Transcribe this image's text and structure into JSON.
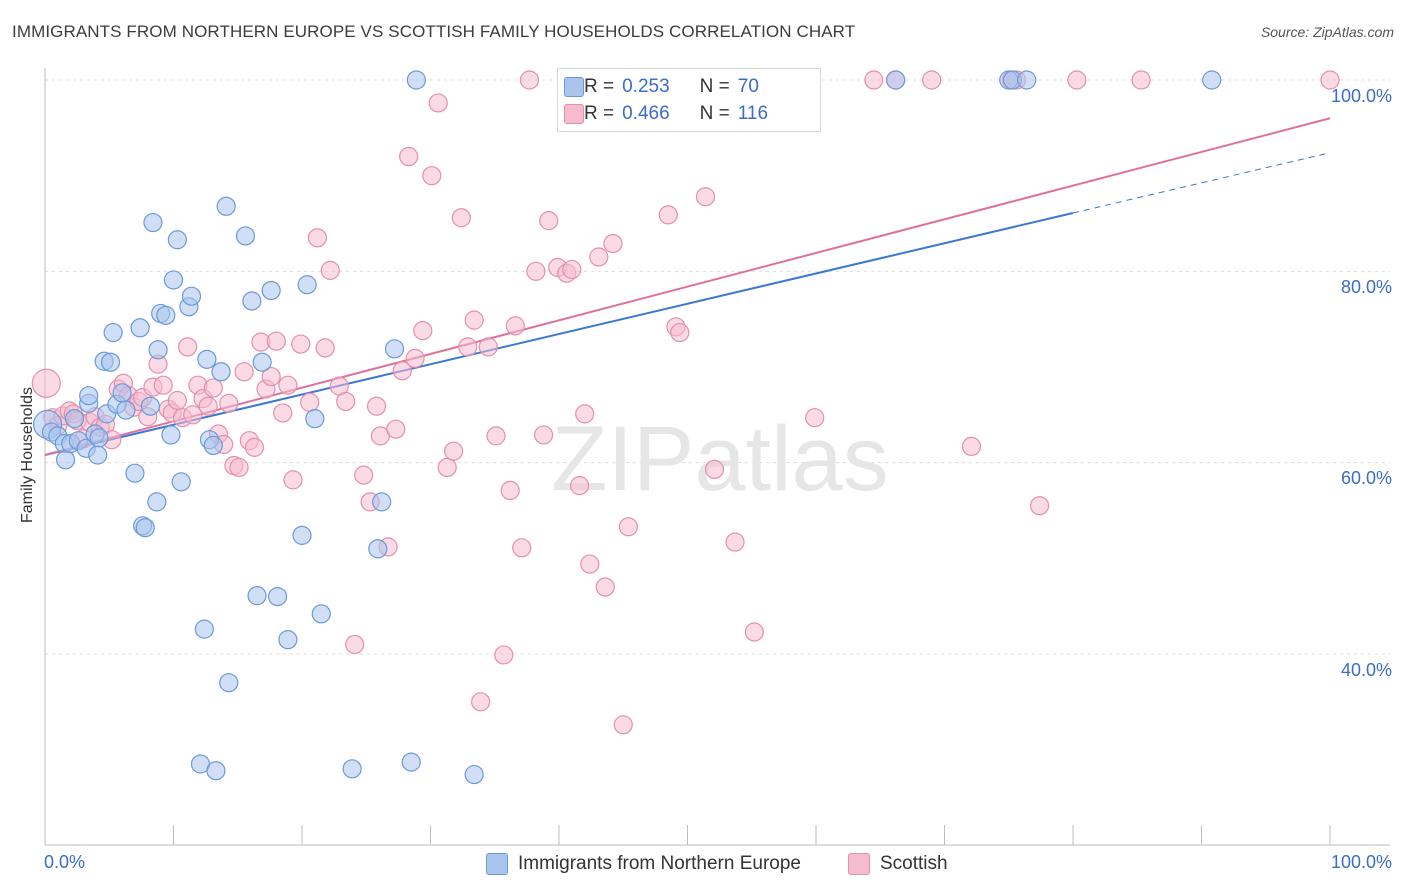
{
  "title": "IMMIGRANTS FROM NORTHERN EUROPE VS SCOTTISH FAMILY HOUSEHOLDS CORRELATION CHART",
  "source": "Source: ZipAtlas.com",
  "watermark": "ZIPatlas",
  "stats_box": {
    "row1": {
      "r_label": "R =",
      "r_value": "0.253",
      "n_label": "N =",
      "n_value": "70"
    },
    "row2": {
      "r_label": "R =",
      "r_value": "0.466",
      "n_label": "N =",
      "n_value": "116"
    }
  },
  "legend": {
    "series1": "Immigrants from Northern Europe",
    "series2": "Scottish"
  },
  "axis_labels": {
    "y": "Family Households",
    "x_min": "0.0%",
    "x_max": "100.0%",
    "y_ticks": [
      "100.0%",
      "80.0%",
      "60.0%",
      "40.0%"
    ]
  },
  "colors": {
    "blue_fill": "#a9c5ee",
    "blue_stroke": "#6b9ad8",
    "blue_line": "#3a78d4",
    "pink_fill": "#f5bcd0",
    "pink_stroke": "#e58fae",
    "pink_line": "#e0709a",
    "tick_text": "#3b6cc9"
  },
  "chart_data": {
    "type": "scatter",
    "xlabel": "",
    "ylabel": "Family Households",
    "xlim": [
      0,
      100
    ],
    "ylim": [
      22,
      102
    ],
    "grid": true,
    "legend_position": "bottom-center",
    "series": [
      {
        "name": "Immigrants from Northern Europe",
        "color": "#a9c5ee",
        "points": [
          [
            0.2,
            64.0
          ],
          [
            0.5,
            63.2
          ],
          [
            1.0,
            62.8
          ],
          [
            1.5,
            62.0
          ],
          [
            1.6,
            60.3
          ],
          [
            2.0,
            62.0
          ],
          [
            2.3,
            64.6
          ],
          [
            2.6,
            62.3
          ],
          [
            3.2,
            61.5
          ],
          [
            3.4,
            66.2
          ],
          [
            3.4,
            67.0
          ],
          [
            3.9,
            63.0
          ],
          [
            4.1,
            60.8
          ],
          [
            4.2,
            62.6
          ],
          [
            4.6,
            70.6
          ],
          [
            4.8,
            65.1
          ],
          [
            5.1,
            70.5
          ],
          [
            5.3,
            73.6
          ],
          [
            5.6,
            66.1
          ],
          [
            6.0,
            67.3
          ],
          [
            6.3,
            65.5
          ],
          [
            7.0,
            58.9
          ],
          [
            7.4,
            74.1
          ],
          [
            7.6,
            53.4
          ],
          [
            7.8,
            53.2
          ],
          [
            8.2,
            65.9
          ],
          [
            8.4,
            85.1
          ],
          [
            8.7,
            55.9
          ],
          [
            8.8,
            71.8
          ],
          [
            9.0,
            75.6
          ],
          [
            9.4,
            75.4
          ],
          [
            9.8,
            62.9
          ],
          [
            10.0,
            79.1
          ],
          [
            10.3,
            83.3
          ],
          [
            10.6,
            58.0
          ],
          [
            11.2,
            76.3
          ],
          [
            11.4,
            77.4
          ],
          [
            12.1,
            28.5
          ],
          [
            12.4,
            42.6
          ],
          [
            12.6,
            70.8
          ],
          [
            12.8,
            62.4
          ],
          [
            13.1,
            61.8
          ],
          [
            13.3,
            27.8
          ],
          [
            13.7,
            69.5
          ],
          [
            14.1,
            86.8
          ],
          [
            14.3,
            37.0
          ],
          [
            15.6,
            83.7
          ],
          [
            16.1,
            76.9
          ],
          [
            16.5,
            46.1
          ],
          [
            16.9,
            70.5
          ],
          [
            17.6,
            78.0
          ],
          [
            18.1,
            46.0
          ],
          [
            18.9,
            41.5
          ],
          [
            20.0,
            52.4
          ],
          [
            20.4,
            78.6
          ],
          [
            21.0,
            64.6
          ],
          [
            21.5,
            44.2
          ],
          [
            23.9,
            28.0
          ],
          [
            25.9,
            51.0
          ],
          [
            26.2,
            55.9
          ],
          [
            27.2,
            71.9
          ],
          [
            28.5,
            28.7
          ],
          [
            28.9,
            100.0
          ],
          [
            33.4,
            27.4
          ],
          [
            55.9,
            100.0
          ],
          [
            66.2,
            100.0
          ],
          [
            75.0,
            100.0
          ],
          [
            75.3,
            100.0
          ],
          [
            76.4,
            100.0
          ],
          [
            90.8,
            100.0
          ]
        ],
        "trend": {
          "x0": 0,
          "y0": 60.8,
          "x1": 80,
          "y1": 86.1,
          "dashed_to_x": 100,
          "dashed_to_y": 92.4
        }
      },
      {
        "name": "Scottish",
        "color": "#f5bcd0",
        "points": [
          [
            0.1,
            68.3
          ],
          [
            0.6,
            64.7
          ],
          [
            1.0,
            63.9
          ],
          [
            1.4,
            64.9
          ],
          [
            1.9,
            65.4
          ],
          [
            2.2,
            65.1
          ],
          [
            2.5,
            64.4
          ],
          [
            3.0,
            62.5
          ],
          [
            3.5,
            64.2
          ],
          [
            3.9,
            64.8
          ],
          [
            4.3,
            63.7
          ],
          [
            4.7,
            64.0
          ],
          [
            5.2,
            62.4
          ],
          [
            5.7,
            67.7
          ],
          [
            6.1,
            68.3
          ],
          [
            6.5,
            67.0
          ],
          [
            6.9,
            65.8
          ],
          [
            7.3,
            66.4
          ],
          [
            7.6,
            66.8
          ],
          [
            8.0,
            64.8
          ],
          [
            8.4,
            67.9
          ],
          [
            8.8,
            70.3
          ],
          [
            9.2,
            68.1
          ],
          [
            9.6,
            65.6
          ],
          [
            9.9,
            65.2
          ],
          [
            10.3,
            66.5
          ],
          [
            10.7,
            64.7
          ],
          [
            11.1,
            72.1
          ],
          [
            11.5,
            65.0
          ],
          [
            11.9,
            68.1
          ],
          [
            12.3,
            66.7
          ],
          [
            12.7,
            65.9
          ],
          [
            13.1,
            67.8
          ],
          [
            13.5,
            63.0
          ],
          [
            13.9,
            61.9
          ],
          [
            14.3,
            66.2
          ],
          [
            14.7,
            59.7
          ],
          [
            15.1,
            59.5
          ],
          [
            15.5,
            69.5
          ],
          [
            15.9,
            62.3
          ],
          [
            16.3,
            61.6
          ],
          [
            16.8,
            72.6
          ],
          [
            17.2,
            67.7
          ],
          [
            17.6,
            69.0
          ],
          [
            18.0,
            72.7
          ],
          [
            18.5,
            65.2
          ],
          [
            18.9,
            68.1
          ],
          [
            19.3,
            58.2
          ],
          [
            19.9,
            72.4
          ],
          [
            20.6,
            66.3
          ],
          [
            21.2,
            83.5
          ],
          [
            21.8,
            72.0
          ],
          [
            22.2,
            80.1
          ],
          [
            22.9,
            68.0
          ],
          [
            23.4,
            66.4
          ],
          [
            24.1,
            41.0
          ],
          [
            24.8,
            58.7
          ],
          [
            25.3,
            55.9
          ],
          [
            25.8,
            65.9
          ],
          [
            26.1,
            62.8
          ],
          [
            26.7,
            51.2
          ],
          [
            27.3,
            63.5
          ],
          [
            27.8,
            69.6
          ],
          [
            28.3,
            92.0
          ],
          [
            28.8,
            70.9
          ],
          [
            29.4,
            73.8
          ],
          [
            30.1,
            90.0
          ],
          [
            30.6,
            97.6
          ],
          [
            31.3,
            59.5
          ],
          [
            31.8,
            61.2
          ],
          [
            32.4,
            85.6
          ],
          [
            32.9,
            72.1
          ],
          [
            33.4,
            74.9
          ],
          [
            33.9,
            35.0
          ],
          [
            34.5,
            72.1
          ],
          [
            35.1,
            62.8
          ],
          [
            35.7,
            39.9
          ],
          [
            36.2,
            57.1
          ],
          [
            36.6,
            74.3
          ],
          [
            37.1,
            51.1
          ],
          [
            37.7,
            100.0
          ],
          [
            38.2,
            80.0
          ],
          [
            38.8,
            62.9
          ],
          [
            39.2,
            85.3
          ],
          [
            39.9,
            80.4
          ],
          [
            40.6,
            79.8
          ],
          [
            41.0,
            80.2
          ],
          [
            41.6,
            57.6
          ],
          [
            42.0,
            65.1
          ],
          [
            42.4,
            49.4
          ],
          [
            43.1,
            81.5
          ],
          [
            43.6,
            47.0
          ],
          [
            44.2,
            82.9
          ],
          [
            45.0,
            32.6
          ],
          [
            45.4,
            53.3
          ],
          [
            47.0,
            95.6
          ],
          [
            48.5,
            85.9
          ],
          [
            49.1,
            74.2
          ],
          [
            49.4,
            73.6
          ],
          [
            51.4,
            87.8
          ],
          [
            52.1,
            59.3
          ],
          [
            53.7,
            51.7
          ],
          [
            55.2,
            42.3
          ],
          [
            55.9,
            95.6
          ],
          [
            57.8,
            100.0
          ],
          [
            59.0,
            100.0
          ],
          [
            59.5,
            100.0
          ],
          [
            59.9,
            64.7
          ],
          [
            64.5,
            100.0
          ],
          [
            66.2,
            100.0
          ],
          [
            69.0,
            100.0
          ],
          [
            72.1,
            61.7
          ],
          [
            75.2,
            100.0
          ],
          [
            75.6,
            100.0
          ],
          [
            77.4,
            55.5
          ],
          [
            80.3,
            100.0
          ],
          [
            85.3,
            100.0
          ],
          [
            100.0,
            100.0
          ]
        ],
        "trend": {
          "x0": 0,
          "y0": 60.8,
          "x1": 100,
          "y1": 96.0
        }
      }
    ]
  }
}
